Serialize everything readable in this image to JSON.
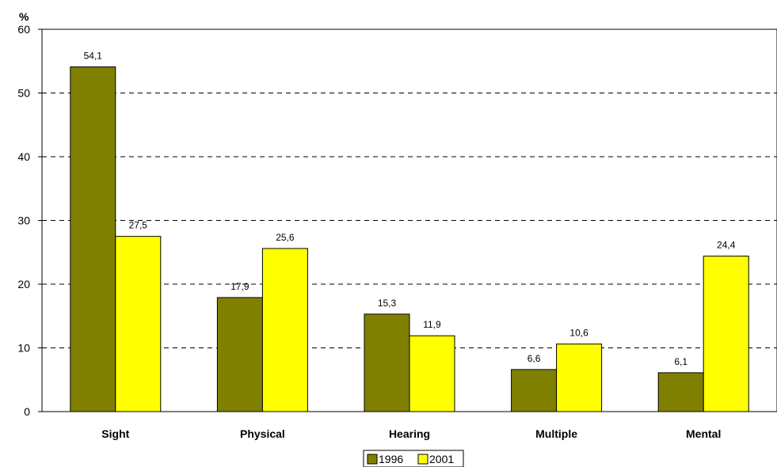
{
  "chart_data": {
    "type": "bar",
    "ylabel": "%",
    "ylim": [
      0,
      60
    ],
    "yticks": [
      0,
      10,
      20,
      30,
      40,
      50,
      60
    ],
    "grid": true,
    "legend_position": "bottom-center",
    "categories": [
      "Sight",
      "Physical",
      "Hearing",
      "Multiple",
      "Mental"
    ],
    "series": [
      {
        "name": "1996",
        "values": [
          54.1,
          17.9,
          15.3,
          6.6,
          6.1
        ],
        "labels": [
          "54,1",
          "17,9",
          "15,3",
          "6,6",
          "6,1"
        ],
        "color": "#808000"
      },
      {
        "name": "2001",
        "values": [
          27.5,
          25.6,
          11.9,
          10.6,
          24.4
        ],
        "labels": [
          "27,5",
          "25,6",
          "11,9",
          "10,6",
          "24,4"
        ],
        "color": "#ffff00"
      }
    ]
  }
}
